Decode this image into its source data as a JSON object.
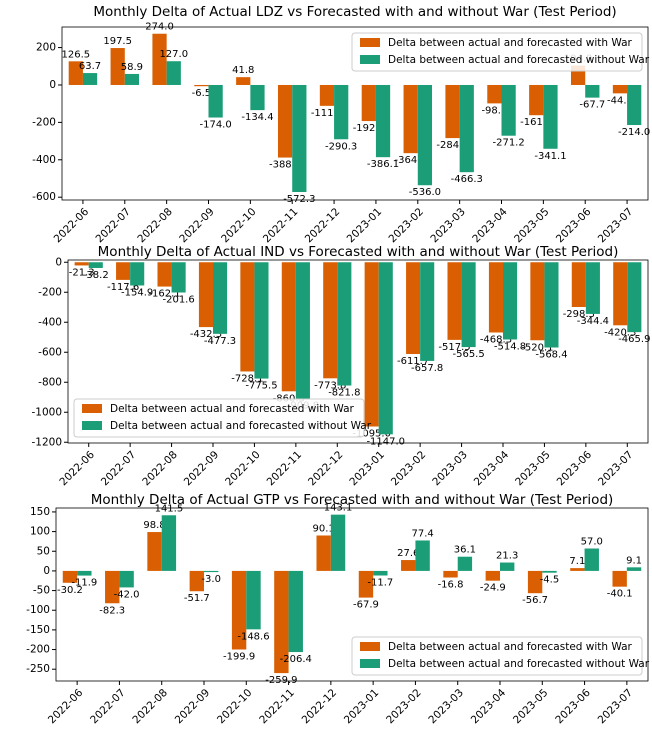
{
  "chart_data": [
    {
      "type": "bar",
      "title": "Monthly Delta of Actual LDZ vs Forecasted with and without War (Test Period)",
      "categories": [
        "2022-06",
        "2022-07",
        "2022-08",
        "2022-09",
        "2022-10",
        "2022-11",
        "2022-12",
        "2023-01",
        "2023-02",
        "2023-03",
        "2023-04",
        "2023-05",
        "2023-06",
        "2023-07"
      ],
      "series": [
        {
          "name": "Delta between actual and forecasted with War",
          "color": "#d95f02",
          "values": [
            126.5,
            197.5,
            274.0,
            -6.5,
            41.8,
            -388.1,
            -111.6,
            -192.9,
            -364.6,
            -284.0,
            -98.4,
            -161.6,
            104.0,
            -44.8
          ],
          "value_labels": [
            "126.5",
            "197.5",
            "274.0",
            "-6.5",
            "41.8",
            "-388.1",
            "-111.6",
            "-192.9",
            "-364.6",
            "-284.0",
            "-98.4",
            "-161.6",
            "104.0",
            "-44.8"
          ]
        },
        {
          "name": "Delta between actual and forecasted without War",
          "color": "#1b9e77",
          "values": [
            63.7,
            58.9,
            127.0,
            -174.0,
            -134.4,
            -572.3,
            -290.3,
            -386.1,
            -536.0,
            -466.3,
            -271.2,
            -341.1,
            -67.7,
            -214.0
          ],
          "value_labels": [
            "63.7",
            "58.9",
            "127.0",
            "-174.0",
            "-134.4",
            "-572.3",
            "-290.3",
            "-386.1",
            "-536.0",
            "-466.3",
            "-271.2",
            "-341.1",
            "-67.7",
            "-214.0"
          ]
        }
      ],
      "ylim": [
        -615,
        310
      ],
      "yticks": [
        -600,
        -400,
        -200,
        0,
        200
      ],
      "legend": "upper right"
    },
    {
      "type": "bar",
      "title": "Monthly Delta of Actual IND vs Forecasted with and without War (Test Period)",
      "categories": [
        "2022-06",
        "2022-07",
        "2022-08",
        "2022-09",
        "2022-10",
        "2022-11",
        "2022-12",
        "2023-01",
        "2023-02",
        "2023-03",
        "2023-04",
        "2023-05",
        "2023-06",
        "2023-07"
      ],
      "series": [
        {
          "name": "Delta between actual and forecasted with War",
          "color": "#d95f02",
          "values": [
            -21.3,
            -117.6,
            -162.1,
            -432.3,
            -728.1,
            -860.3,
            -773.8,
            -1095.0,
            -611.7,
            -517.5,
            -468.3,
            -520.1,
            -298.3,
            -420.3
          ],
          "value_labels": [
            "-21.3",
            "-117.6",
            "-162.1",
            "-432.3",
            "-728.1",
            "-860.3",
            "-773.8",
            "-1095.0",
            "-611.7",
            "-517.5",
            "-468.3",
            "-520.1",
            "-298.3",
            "-420.3"
          ]
        },
        {
          "name": "Delta between actual and forecasted without War",
          "color": "#1b9e77",
          "values": [
            -38.2,
            -154.9,
            -201.6,
            -477.3,
            -775.5,
            -909.8,
            -821.8,
            -1147.0,
            -657.8,
            -565.5,
            -514.8,
            -568.4,
            -344.4,
            -465.9
          ],
          "value_labels": [
            "-38.2",
            "-154.9",
            "-201.6",
            "-477.3",
            "-775.5",
            "-909.8",
            "-821.8",
            "-1147.0",
            "-657.8",
            "-565.5",
            "-514.8",
            "-568.4",
            "-344.4",
            "-465.9"
          ]
        }
      ],
      "ylim": [
        -1205,
        15
      ],
      "yticks": [
        -1200,
        -1000,
        -800,
        -600,
        -400,
        -200,
        0
      ],
      "legend": "lower left"
    },
    {
      "type": "bar",
      "title": "Monthly Delta of Actual GTP vs Forecasted with and without War (Test Period)",
      "categories": [
        "2022-06",
        "2022-07",
        "2022-08",
        "2022-09",
        "2022-10",
        "2022-11",
        "2022-12",
        "2023-01",
        "2023-02",
        "2023-03",
        "2023-04",
        "2023-05",
        "2023-06",
        "2023-07"
      ],
      "series": [
        {
          "name": "Delta between actual and forecasted with War",
          "color": "#d95f02",
          "values": [
            -30.2,
            -82.3,
            98.8,
            -51.7,
            -199.9,
            -259.9,
            90.1,
            -67.9,
            27.6,
            -16.8,
            -24.9,
            -56.7,
            7.1,
            -40.1
          ],
          "value_labels": [
            "-30.2",
            "-82.3",
            "98.8",
            "-51.7",
            "-199.9",
            "-259.9",
            "90.1",
            "-67.9",
            "27.6",
            "-16.8",
            "-24.9",
            "-56.7",
            "7.1",
            "-40.1"
          ]
        },
        {
          "name": "Delta between actual and forecasted without War",
          "color": "#1b9e77",
          "values": [
            -11.9,
            -42.0,
            141.5,
            -3.0,
            -148.6,
            -206.4,
            143.1,
            -11.7,
            77.4,
            36.1,
            21.3,
            -4.5,
            57.0,
            9.1
          ],
          "value_labels": [
            "-11.9",
            "-42.0",
            "141.5",
            "-3.0",
            "-148.6",
            "-206.4",
            "143.1",
            "-11.7",
            "77.4",
            "36.1",
            "21.3",
            "-4.5",
            "57.0",
            "9.1"
          ]
        }
      ],
      "ylim": [
        -280,
        160
      ],
      "yticks": [
        -250,
        -200,
        -150,
        -100,
        -50,
        0,
        50,
        100,
        150
      ],
      "legend": "lower right"
    }
  ]
}
